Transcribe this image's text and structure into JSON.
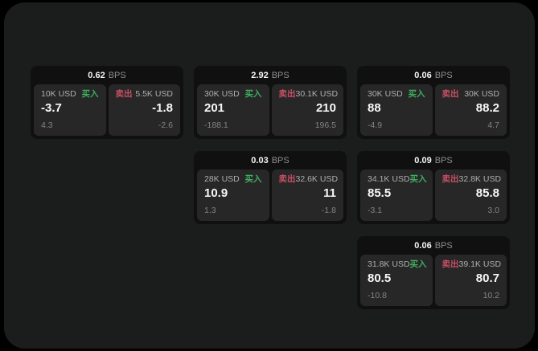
{
  "labels": {
    "buy": "买入",
    "sell": "卖出",
    "bps_unit": "BPS"
  },
  "colors": {
    "buy_green": "#3fae5f",
    "sell_red": "#c84f63",
    "frame_bg": "#1b1c1c",
    "card_bg": "#101011",
    "panel_bg": "#272728"
  },
  "cards": [
    {
      "bps": "0.62",
      "buy": {
        "size": "10K USD",
        "price": "-3.7",
        "sub": "4.3"
      },
      "sell": {
        "size": "5.5K USD",
        "price": "-1.8",
        "sub": "-2.6"
      }
    },
    {
      "bps": "2.92",
      "buy": {
        "size": "30K USD",
        "price": "201",
        "sub": "-188.1"
      },
      "sell": {
        "size": "30.1K USD",
        "price": "210",
        "sub": "196.5"
      }
    },
    {
      "bps": "0.06",
      "buy": {
        "size": "30K USD",
        "price": "88",
        "sub": "-4.9"
      },
      "sell": {
        "size": "30K USD",
        "price": "88.2",
        "sub": "4.7"
      }
    },
    {
      "bps": "0.03",
      "buy": {
        "size": "28K USD",
        "price": "10.9",
        "sub": "1.3"
      },
      "sell": {
        "size": "32.6K USD",
        "price": "11",
        "sub": "-1.8"
      }
    },
    {
      "bps": "0.09",
      "buy": {
        "size": "34.1K USD",
        "price": "85.5",
        "sub": "-3.1"
      },
      "sell": {
        "size": "32.8K USD",
        "price": "85.8",
        "sub": "3.0"
      }
    },
    {
      "bps": "0.06",
      "buy": {
        "size": "31.8K USD",
        "price": "80.5",
        "sub": "-10.8"
      },
      "sell": {
        "size": "39.1K USD",
        "price": "80.7",
        "sub": "10.2"
      }
    }
  ]
}
